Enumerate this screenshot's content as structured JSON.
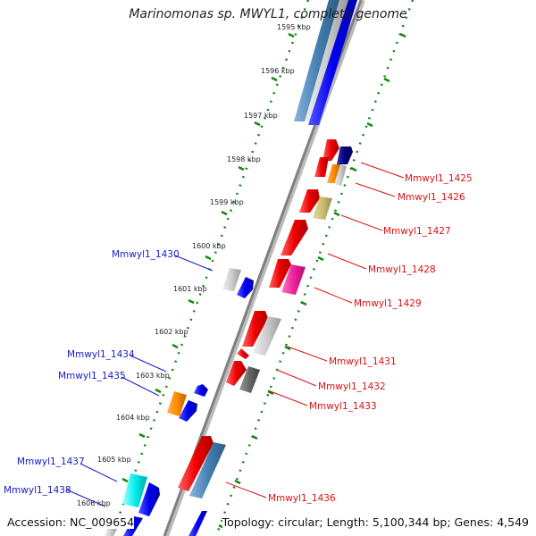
{
  "title": "Marinomonas sp. MWYL1, complete genome",
  "footer": {
    "accession": "Accession: NC_009654",
    "topology": "Topology: circular; Length: 5,100,344 bp; Genes: 4,549"
  },
  "kbp_labels": [
    "1595 kbp",
    "1596 kbp",
    "1597 kbp",
    "1598 kbp",
    "1599 kbp",
    "1600 kbp",
    "1601 kbp",
    "1602 kbp",
    "1603 kbp",
    "1604 kbp",
    "1605 kbp",
    "1606 kbp"
  ],
  "colors": {
    "forward_label": "#1a1acc",
    "reverse_label": "#dd1111",
    "axis": "#888888",
    "ticks": "#118811"
  },
  "gene_labels_forward": [
    "Mmwyl1_1430",
    "Mmwyl1_1434",
    "Mmwyl1_1435",
    "Mmwyl1_1437",
    "Mmwyl1_1438"
  ],
  "gene_labels_reverse": [
    "Mmwyl1_1425",
    "Mmwyl1_1426",
    "Mmwyl1_1427",
    "Mmwyl1_1428",
    "Mmwyl1_1429",
    "Mmwyl1_1431",
    "Mmwyl1_1432",
    "Mmwyl1_1433",
    "Mmwyl1_1436"
  ]
}
